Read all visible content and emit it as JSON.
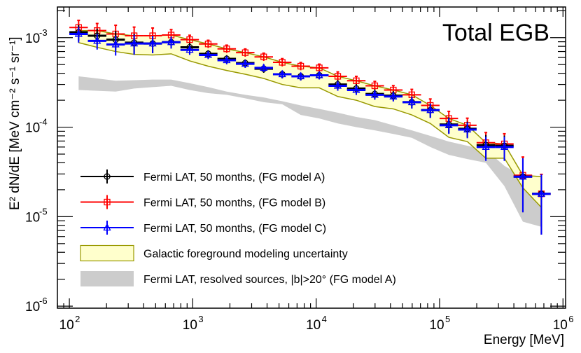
{
  "chart_data": {
    "type": "scatter",
    "title": "Total EGB",
    "xlabel": "Energy [MeV]",
    "ylabel": "E² dN/dE [MeV cm⁻² s⁻¹ sr⁻¹]",
    "xscale": "log",
    "yscale": "log",
    "xlim": [
      80,
      1050000
    ],
    "ylim": [
      9.5e-07,
      0.0022
    ],
    "x_ticks": [
      {
        "value": 100,
        "base": "10",
        "exp": "2"
      },
      {
        "value": 1000,
        "base": "10",
        "exp": "3"
      },
      {
        "value": 10000,
        "base": "10",
        "exp": "4"
      },
      {
        "value": 100000,
        "base": "10",
        "exp": "5"
      },
      {
        "value": 1000000,
        "base": "10",
        "exp": "6"
      }
    ],
    "y_ticks": [
      {
        "value": 0.001,
        "base": "10",
        "exp": "-3"
      },
      {
        "value": 0.0001,
        "base": "10",
        "exp": "-4"
      },
      {
        "value": 1e-05,
        "base": "10",
        "exp": "-5"
      },
      {
        "value": 1e-06,
        "base": "10",
        "exp": "-6"
      }
    ],
    "bin_log_start": 2.0,
    "bin_log_width": 0.15,
    "series": [
      {
        "name": "Fermi LAT, 50 months, (FG model A)",
        "color": "#000000",
        "marker": "circle",
        "values": [
          0.00115,
          0.00105,
          0.00095,
          0.00088,
          0.00086,
          0.00089,
          0.00078,
          0.00066,
          0.00058,
          0.00052,
          0.00045,
          0.00039,
          0.00037,
          0.00038,
          0.0003,
          0.00027,
          0.000235,
          0.000225,
          0.00019,
          0.000155,
          0.000107,
          9.6e-05,
          6.3e-05,
          6.2e-05,
          2.8e-05,
          1.8e-05
        ]
      },
      {
        "name": "Fermi LAT, 50 months, (FG model B)",
        "color": "#ff0000",
        "marker": "square",
        "values": [
          0.0013,
          0.0012,
          0.0011,
          0.00105,
          0.00105,
          0.00107,
          0.00095,
          0.00085,
          0.00075,
          0.00068,
          0.00061,
          0.00053,
          0.00048,
          0.00046,
          0.00037,
          0.00033,
          0.00029,
          0.00026,
          0.00023,
          0.000175,
          0.000125,
          0.000105,
          6.7e-05,
          6.5e-05,
          2.9e-05,
          1.8e-05
        ]
      },
      {
        "name": "Fermi LAT, 50 months, (FG model C)",
        "color": "#0000ff",
        "marker": "triangle",
        "values": [
          0.0011,
          0.00092,
          0.00084,
          0.00086,
          0.00086,
          0.00089,
          0.00073,
          0.00064,
          0.00056,
          0.00051,
          0.00046,
          0.00039,
          0.00037,
          0.00038,
          0.00029,
          0.00026,
          0.00023,
          0.00022,
          0.00019,
          0.000155,
          0.000105,
          9.4e-05,
          6e-05,
          6e-05,
          2.8e-05,
          1.8e-05
        ]
      }
    ],
    "relative_errors": [
      0.2,
      0.2,
      0.25,
      0.25,
      0.22,
      0.15,
      0.12,
      0.1,
      0.1,
      0.1,
      0.1,
      0.1,
      0.1,
      0.1,
      0.12,
      0.12,
      0.12,
      0.12,
      0.15,
      0.18,
      0.2,
      0.2,
      0.3,
      0.3,
      0.6,
      0.65
    ],
    "bands": [
      {
        "name": "Galactic foreground modeling uncertainty",
        "fill": "#ffffcc",
        "stroke": "#999900",
        "upper": [
          0.0012,
          0.0012,
          0.0011,
          0.00105,
          0.00105,
          0.00107,
          0.00095,
          0.00085,
          0.00075,
          0.00068,
          0.00061,
          0.00053,
          0.00048,
          0.00046,
          0.00037,
          0.00033,
          0.00029,
          0.00026,
          0.00023,
          0.000175,
          0.000125,
          0.000105,
          6.7e-05,
          6.5e-05,
          2.9e-05,
          2.8e-05
        ],
        "lower": [
          0.00088,
          0.00078,
          0.0007,
          0.00065,
          0.00064,
          0.00066,
          0.00055,
          0.00048,
          0.00043,
          0.00039,
          0.00035,
          0.0003,
          0.000275,
          0.000275,
          0.00022,
          0.0002,
          0.00017,
          0.00016,
          0.000137,
          0.00011,
          7.7e-05,
          6.9e-05,
          4.5e-05,
          4.5e-05,
          2.1e-05,
          1.27e-05
        ]
      },
      {
        "name": "Fermi LAT, resolved sources, |b|>20° (FG model A)",
        "fill": "#cccccc",
        "stroke": "none",
        "upper": [
          0.00037,
          0.00035,
          0.00033,
          0.000335,
          0.00034,
          0.00034,
          0.00031,
          0.00028,
          0.00025,
          0.00023,
          0.000215,
          0.000195,
          0.000175,
          0.00016,
          0.000145,
          0.00013,
          0.00012,
          0.000105,
          9.2e-05,
          8e-05,
          6.9e-05,
          6.2e-05,
          5.6e-05,
          3.7e-05,
          2.8e-05,
          2.8e-05
        ],
        "lower": [
          0.00026,
          0.000255,
          0.00025,
          0.00027,
          0.00028,
          0.00029,
          0.00026,
          0.00024,
          0.00023,
          0.00021,
          0.00019,
          0.00018,
          0.000137,
          0.000125,
          0.00011,
          0.0001,
          9.2e-05,
          8.4e-05,
          7.6e-05,
          6e-05,
          4.9e-05,
          4.4e-05,
          4e-05,
          2.2e-05,
          8.8e-06,
          7.7e-06
        ]
      }
    ],
    "legend_position": "bottom-left",
    "grid": false
  }
}
